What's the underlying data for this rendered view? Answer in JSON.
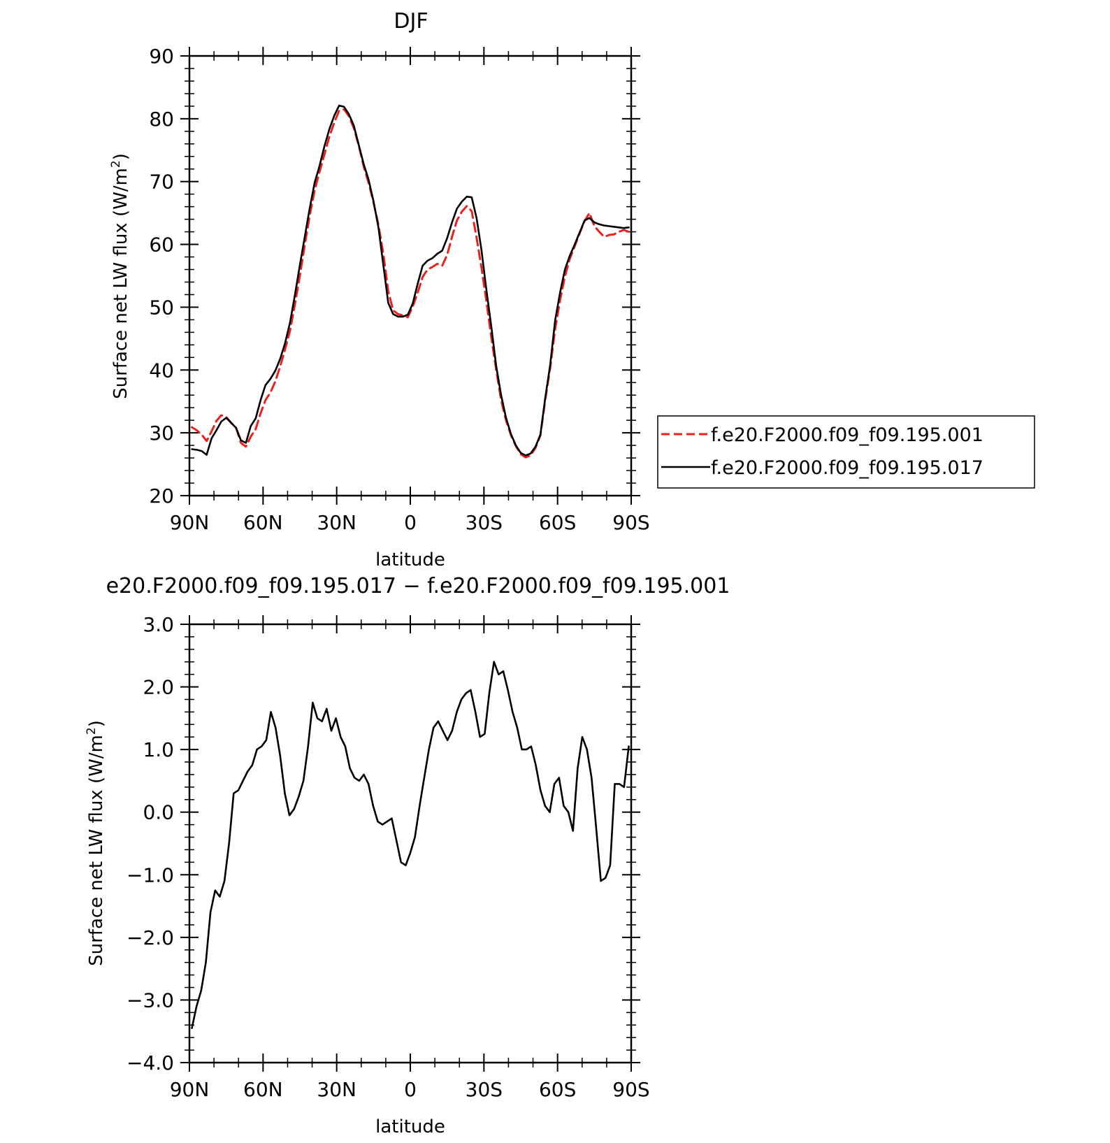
{
  "chart_data": [
    {
      "type": "line",
      "title": "DJF",
      "xlabel": "latitude",
      "ylabel": "Surface net LW flux (W/m",
      "ylabel_sup": "2",
      "ylabel_close": ")",
      "xlim": [
        90,
        -90
      ],
      "ylim": [
        20,
        90
      ],
      "x_ticks": [
        90,
        60,
        30,
        0,
        -30,
        -60,
        -90
      ],
      "x_tick_labels": [
        "90N",
        "60N",
        "30N",
        "0",
        "30S",
        "60S",
        "90S"
      ],
      "y_ticks": [
        20,
        30,
        40,
        50,
        60,
        70,
        80,
        90
      ],
      "y_tick_labels": [
        "20",
        "30",
        "40",
        "50",
        "60",
        "70",
        "80",
        "90"
      ],
      "legend_position": "right",
      "x": [
        89,
        87,
        85,
        83,
        81,
        79,
        77,
        75,
        73,
        71,
        69,
        67,
        65,
        63,
        61,
        59,
        57,
        55,
        53,
        51,
        49,
        47,
        45,
        43,
        41,
        39,
        37,
        35,
        33,
        31,
        29,
        27,
        25,
        23,
        21,
        19,
        17,
        15,
        13,
        11,
        9,
        7,
        5,
        3,
        1,
        -1,
        -3,
        -5,
        -7,
        -9,
        -11,
        -13,
        -15,
        -17,
        -19,
        -21,
        -23,
        -25,
        -27,
        -29,
        -31,
        -33,
        -35,
        -37,
        -39,
        -41,
        -43,
        -45,
        -47,
        -49,
        -51,
        -53,
        -55,
        -57,
        -59,
        -61,
        -63,
        -65,
        -67,
        -69,
        -71,
        -73,
        -75,
        -77,
        -79,
        -81,
        -83,
        -85,
        -87,
        -89
      ],
      "series": [
        {
          "name": "f.e20.F2000.f09_f09.195.001",
          "color": "#e8231f",
          "dash": true,
          "values": [
            30.9,
            30.4,
            29.7,
            28.7,
            30.2,
            31.9,
            32.8,
            32.5,
            31.6,
            30.8,
            28.4,
            27.8,
            29.4,
            30.6,
            33.1,
            35.2,
            36.4,
            38.2,
            40.6,
            43.3,
            46.3,
            50.5,
            55.0,
            59.9,
            64.5,
            68.6,
            71.5,
            74.3,
            77.1,
            79.4,
            81.3,
            81.5,
            80.4,
            78.5,
            75.7,
            72.4,
            69.8,
            66.7,
            63.1,
            58.5,
            52.6,
            49.5,
            48.9,
            48.7,
            48.4,
            50.1,
            52.3,
            54.8,
            56.0,
            56.4,
            56.9,
            56.6,
            58.3,
            61.2,
            63.8,
            65.2,
            66.1,
            65.3,
            61.1,
            56.3,
            51.0,
            45.2,
            40.0,
            35.2,
            32.0,
            29.6,
            27.9,
            26.6,
            26.1,
            26.4,
            27.6,
            29.6,
            35.3,
            40.3,
            46.5,
            51.1,
            54.9,
            57.7,
            59.7,
            61.8,
            63.7,
            65.0,
            62.9,
            62.0,
            61.2,
            61.5,
            61.6,
            62.0,
            62.3,
            62.0
          ]
        },
        {
          "name": "f.e20.F2000.f09_f09.195.017",
          "color": "#000000",
          "dash": false,
          "values": [
            27.4,
            27.3,
            27.1,
            26.5,
            29.1,
            30.4,
            31.8,
            32.4,
            31.6,
            30.8,
            28.8,
            28.4,
            31.1,
            32.3,
            35.2,
            37.6,
            38.6,
            39.9,
            41.8,
            44.3,
            47.6,
            52.0,
            56.7,
            61.2,
            65.7,
            69.8,
            72.5,
            75.6,
            78.3,
            80.5,
            82.1,
            81.9,
            80.7,
            78.9,
            75.8,
            72.8,
            70.3,
            66.9,
            62.7,
            56.7,
            50.7,
            48.9,
            48.5,
            48.5,
            48.8,
            50.6,
            53.7,
            56.6,
            57.4,
            57.8,
            58.5,
            59.0,
            61.0,
            63.5,
            65.7,
            66.8,
            67.6,
            67.5,
            64.2,
            59.1,
            52.8,
            46.9,
            40.6,
            36.0,
            32.4,
            29.8,
            28.0,
            26.8,
            26.4,
            26.7,
            27.8,
            29.7,
            35.6,
            40.8,
            47.9,
            52.3,
            56.0,
            58.2,
            60.0,
            61.9,
            63.8,
            64.2,
            63.5,
            63.2,
            63.0,
            62.9,
            62.8,
            62.7,
            62.6,
            62.7
          ]
        }
      ]
    },
    {
      "type": "line",
      "title": "e20.F2000.f09_f09.195.017 − f.e20.F2000.f09_f09.195.001",
      "xlabel": "latitude",
      "ylabel": "Surface net LW flux (W/m",
      "ylabel_sup": "2",
      "ylabel_close": ")",
      "xlim": [
        90,
        -90
      ],
      "ylim": [
        -4.0,
        3.0
      ],
      "x_ticks": [
        90,
        60,
        30,
        0,
        -30,
        -60,
        -90
      ],
      "x_tick_labels": [
        "90N",
        "60N",
        "30N",
        "0",
        "30S",
        "60S",
        "90S"
      ],
      "y_ticks": [
        -4.0,
        -3.0,
        -2.0,
        -1.0,
        0.0,
        1.0,
        2.0,
        3.0
      ],
      "y_tick_labels": [
        "−4.0",
        "−3.0",
        "−2.0",
        "−1.0",
        "0.0",
        "1.0",
        "2.0",
        "3.0"
      ],
      "series": [
        {
          "color": "#000000",
          "dash": false,
          "values": [
            -3.45,
            -3.1,
            -2.85,
            -2.4,
            -1.6,
            -1.25,
            -1.35,
            -1.1,
            -0.5,
            0.3,
            0.35,
            0.5,
            0.65,
            0.75,
            1.0,
            1.05,
            1.15,
            1.6,
            1.35,
            0.9,
            0.3,
            -0.05,
            0.05,
            0.25,
            0.5,
            1.05,
            1.75,
            1.5,
            1.45,
            1.65,
            1.3,
            1.5,
            1.2,
            1.05,
            0.7,
            0.55,
            0.5,
            0.6,
            0.45,
            0.1,
            -0.15,
            -0.2,
            -0.15,
            -0.1,
            -0.45,
            -0.8,
            -0.85,
            -0.65,
            -0.4,
            0.1,
            0.55,
            1.0,
            1.35,
            1.45,
            1.3,
            1.15,
            1.3,
            1.6,
            1.8,
            1.9,
            1.95,
            1.6,
            1.2,
            1.25,
            1.9,
            2.4,
            2.2,
            2.25,
            1.95,
            1.6,
            1.35,
            1.0,
            1.0,
            1.05,
            0.75,
            0.35,
            0.1,
            0.0,
            0.45,
            0.55,
            0.1,
            0.0,
            -0.3,
            0.7,
            1.2,
            1.0,
            0.55,
            -0.25,
            -1.1,
            -1.05,
            -0.85,
            0.45,
            0.45,
            0.4,
            1.05
          ]
        }
      ]
    }
  ]
}
